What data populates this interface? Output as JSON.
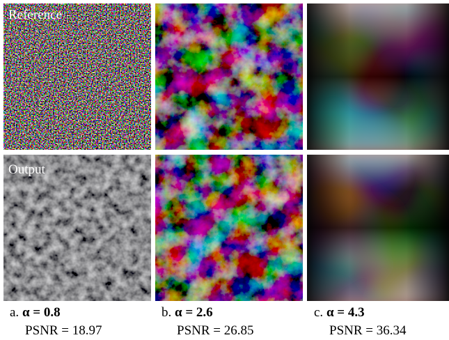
{
  "rows": [
    "Reference",
    "Output"
  ],
  "columns": [
    {
      "label": "a.",
      "alpha": "α = 0.8",
      "psnr": "PSNR = 18.97"
    },
    {
      "label": "b.",
      "alpha": "α = 2.6",
      "psnr": "PSNR = 26.85"
    },
    {
      "label": "c.",
      "alpha": "α = 4.3",
      "psnr": "PSNR = 36.34"
    }
  ]
}
